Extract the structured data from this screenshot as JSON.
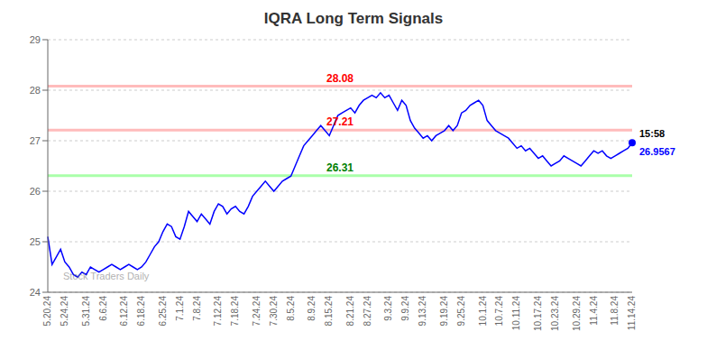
{
  "chart_data": {
    "type": "line",
    "title": "IQRA Long Term Signals",
    "watermark": "Stock Traders Daily",
    "color": "blue",
    "grid": true,
    "categories": [
      "5.20.24",
      null,
      null,
      null,
      "5.24.24",
      null,
      null,
      null,
      null,
      "5.31.24",
      null,
      null,
      null,
      "6.6.24",
      null,
      null,
      null,
      null,
      "6.12.24",
      null,
      null,
      null,
      "6.18.24",
      null,
      null,
      null,
      null,
      "6.25.24",
      null,
      null,
      null,
      "7.1.24",
      null,
      null,
      null,
      "7.8.24",
      null,
      null,
      null,
      null,
      "7.12.24",
      null,
      null,
      null,
      "7.18.24",
      null,
      null,
      null,
      null,
      "7.24.24",
      null,
      null,
      null,
      "7.30.24",
      null,
      null,
      null,
      "8.5.24",
      null,
      null,
      null,
      null,
      "8.9.24",
      null,
      null,
      null,
      "8.15.24",
      null,
      null,
      null,
      null,
      "8.21.24",
      null,
      null,
      null,
      "8.27.24",
      null,
      null,
      null,
      null,
      "9.3.24",
      null,
      null,
      null,
      "9.9.24",
      null,
      null,
      null,
      "9.13.24",
      null,
      null,
      null,
      null,
      "9.19.24",
      null,
      null,
      null,
      "9.25.24",
      null,
      null,
      null,
      null,
      "10.1.24",
      null,
      null,
      null,
      "10.7.24",
      null,
      null,
      null,
      "10.11.24",
      null,
      null,
      null,
      null,
      "10.17.24",
      null,
      null,
      null,
      "10.23.24",
      null,
      null,
      null,
      null,
      "10.29.24",
      null,
      null,
      null,
      "11.4.24",
      null,
      null,
      null,
      null,
      "11.8.24",
      null,
      null,
      null,
      "11.14.24"
    ],
    "values": [
      25.1,
      24.55,
      24.7,
      24.85,
      24.6,
      24.5,
      24.35,
      24.3,
      24.4,
      24.35,
      24.5,
      24.45,
      24.4,
      24.45,
      24.5,
      24.55,
      24.5,
      24.45,
      24.5,
      24.55,
      24.5,
      24.45,
      24.5,
      24.6,
      24.75,
      24.9,
      25.0,
      25.2,
      25.35,
      25.3,
      25.1,
      25.05,
      25.3,
      25.6,
      25.5,
      25.4,
      25.55,
      25.45,
      25.35,
      25.6,
      25.75,
      25.7,
      25.55,
      25.65,
      25.7,
      25.6,
      25.55,
      25.7,
      25.9,
      26.0,
      26.1,
      26.2,
      26.1,
      26.0,
      26.1,
      26.2,
      26.25,
      26.3,
      26.5,
      26.7,
      26.9,
      27.0,
      27.1,
      27.2,
      27.3,
      27.2,
      27.1,
      27.3,
      27.5,
      27.55,
      27.6,
      27.65,
      27.55,
      27.7,
      27.8,
      27.85,
      27.9,
      27.85,
      27.95,
      27.85,
      27.9,
      27.75,
      27.6,
      27.8,
      27.7,
      27.4,
      27.25,
      27.15,
      27.05,
      27.1,
      27.0,
      27.1,
      27.15,
      27.2,
      27.3,
      27.2,
      27.3,
      27.55,
      27.6,
      27.7,
      27.75,
      27.8,
      27.7,
      27.4,
      27.3,
      27.2,
      27.15,
      27.1,
      27.05,
      26.95,
      26.85,
      26.9,
      26.8,
      26.85,
      26.75,
      26.65,
      26.7,
      26.6,
      26.5,
      26.55,
      26.6,
      26.7,
      26.65,
      26.6,
      26.55,
      26.5,
      26.6,
      26.7,
      26.8,
      26.75,
      26.8,
      26.7,
      26.65,
      26.7,
      26.75,
      26.8,
      26.85,
      26.96
    ],
    "ylim": [
      24.0,
      29.0
    ],
    "yticks": [
      24,
      25,
      26,
      27,
      28,
      29
    ],
    "hlines": [
      {
        "y": 28.08,
        "label": "28.08",
        "color": "#ffbbbb",
        "label_color": "red"
      },
      {
        "y": 27.21,
        "label": "27.21",
        "color": "#ffbbbb",
        "label_color": "red"
      },
      {
        "y": 26.31,
        "label": "26.31",
        "color": "#aaffaa",
        "label_color": "green"
      }
    ],
    "last_point": {
      "time": "15:58",
      "price": "26.9567",
      "time_color": "black",
      "price_color": "blue"
    }
  }
}
